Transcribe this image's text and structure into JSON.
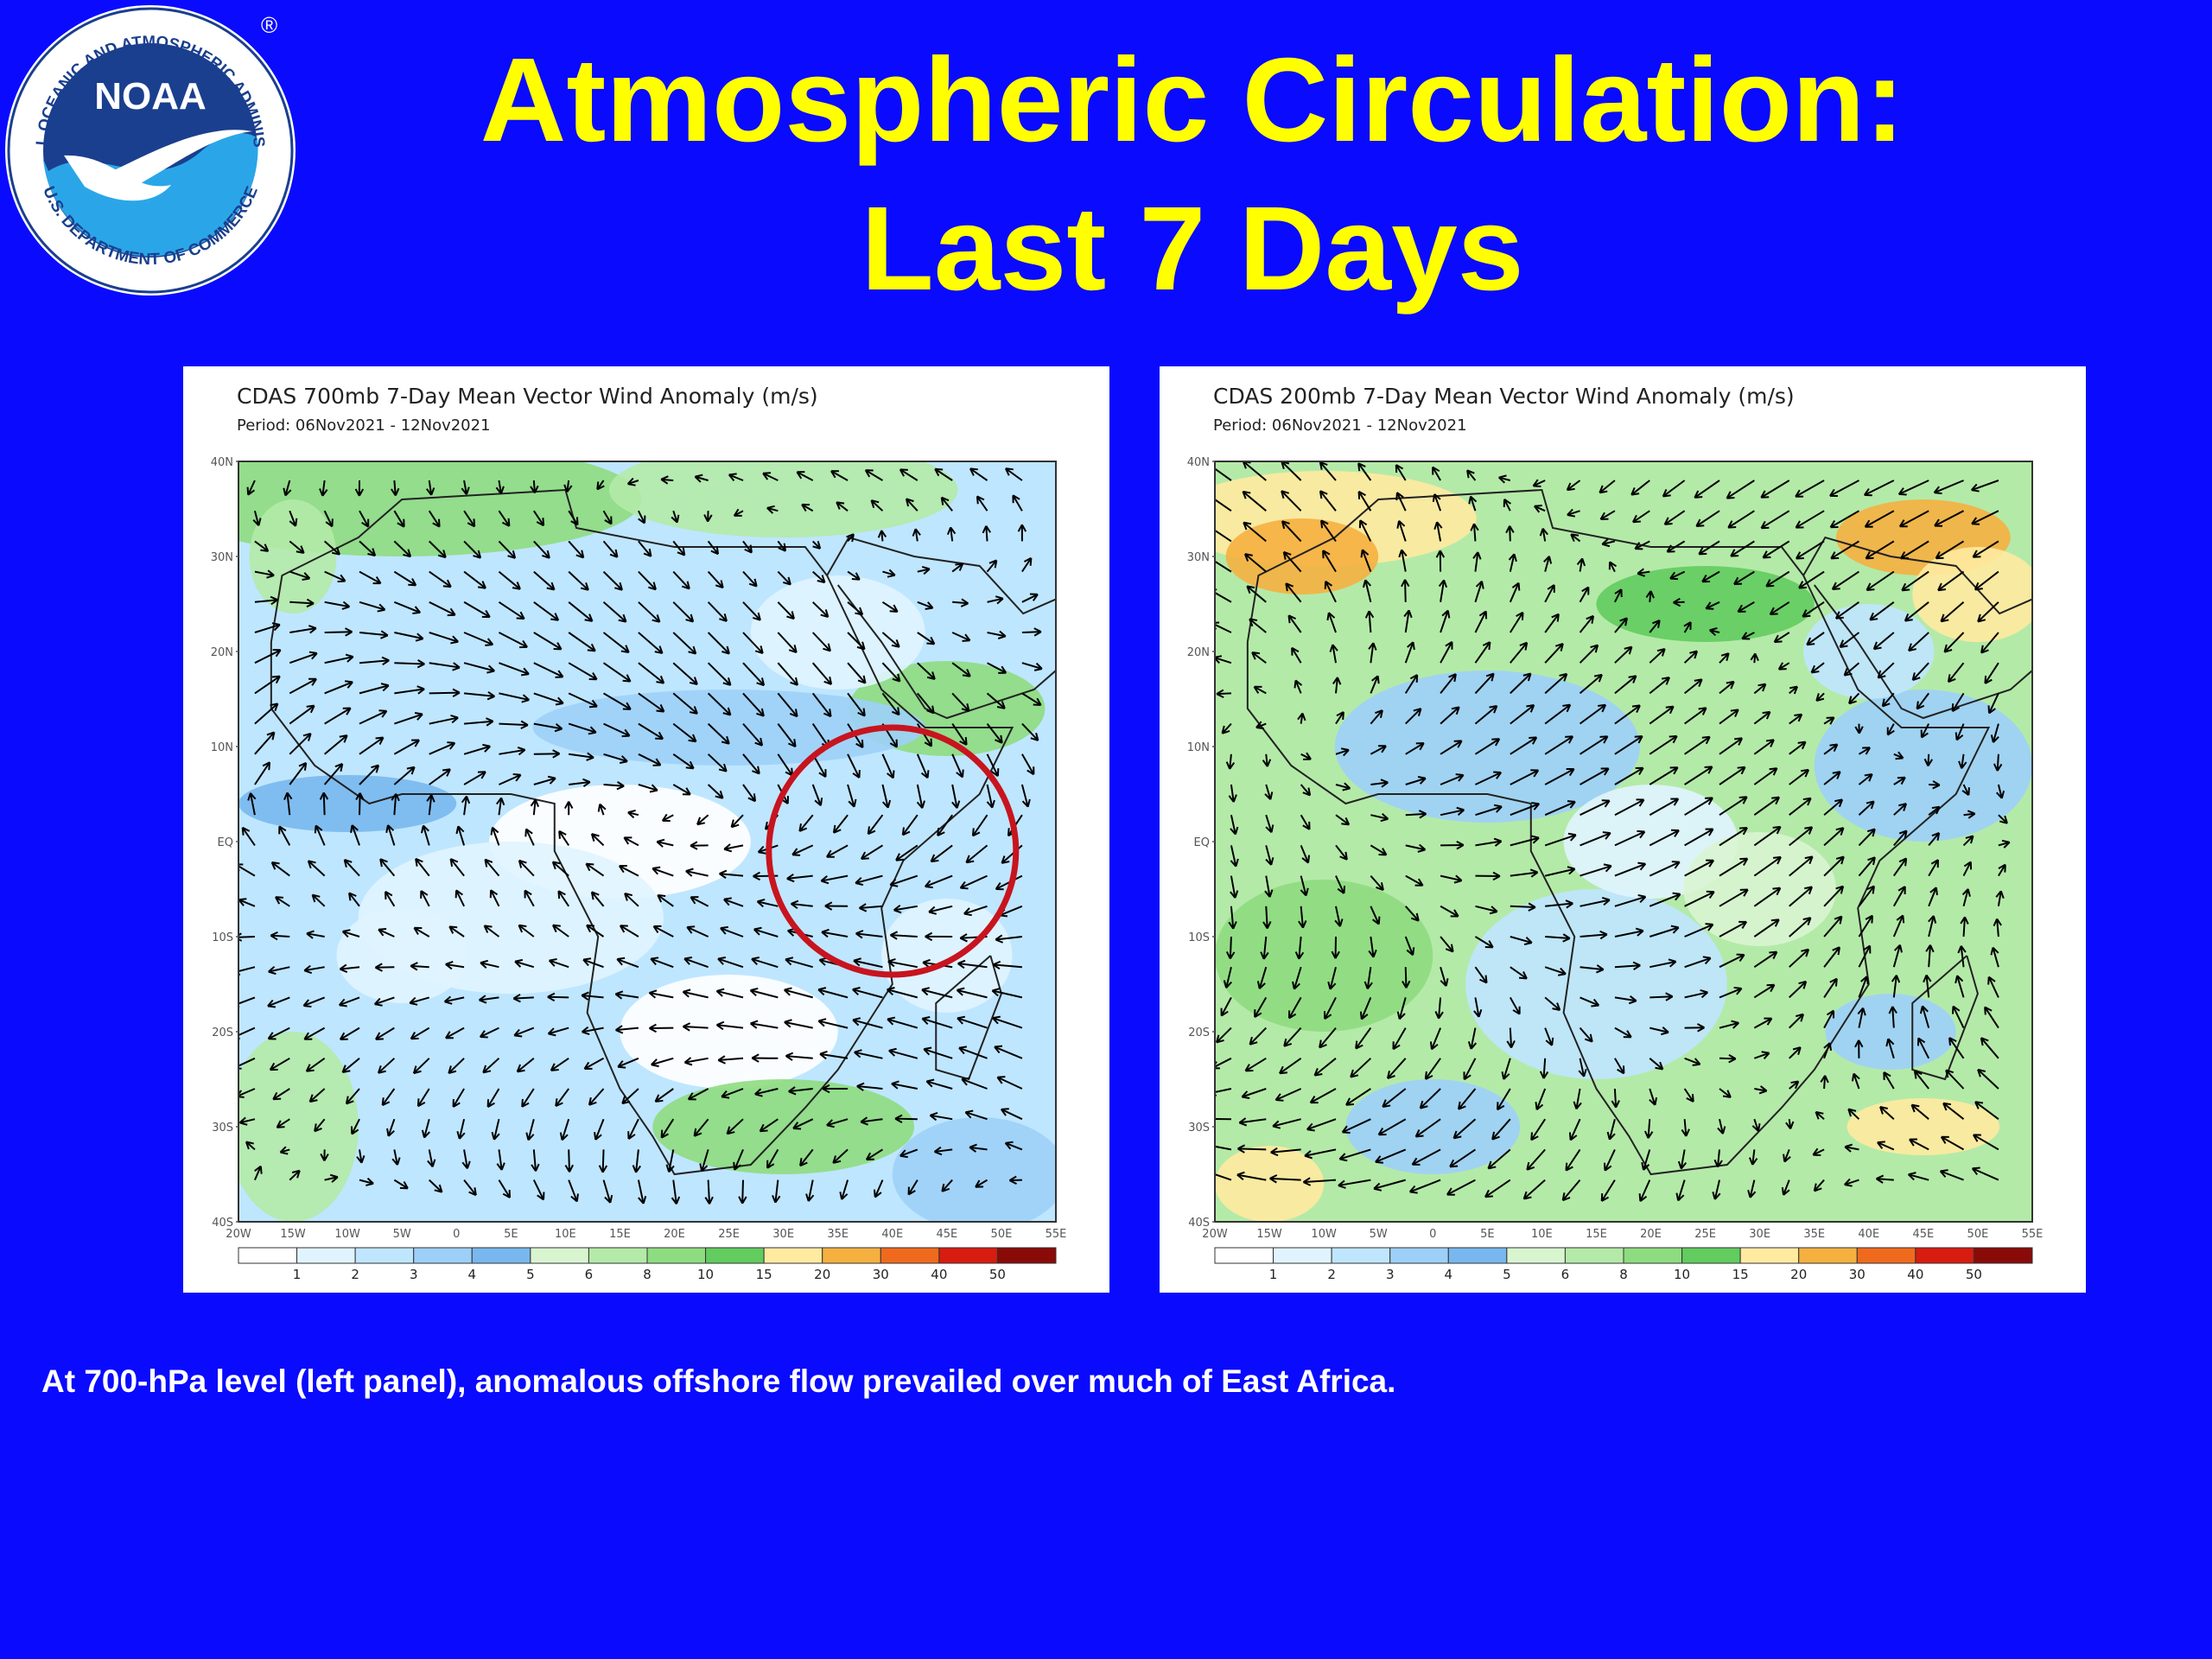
{
  "slide": {
    "title_line1": "Atmospheric Circulation:",
    "title_line2": "Last 7 Days",
    "caption": "At 700-hPa level (left panel), anomalous offshore flow prevailed over much of East Africa.",
    "background_color": "#0a0aff",
    "title_color": "#ffff00"
  },
  "logo": {
    "center_text": "NOAA",
    "ring_text_top": "NATIONAL OCEANIC AND ATMOSPHERIC ADMINISTRATION",
    "ring_text_bottom": "U.S. DEPARTMENT OF COMMERCE",
    "registered_mark": "®"
  },
  "panels": [
    {
      "id": "left",
      "title": "CDAS 700mb 7-Day Mean Vector Wind Anomaly (m/s)",
      "period": "Period: 06Nov2021 - 12Nov2021",
      "highlight_circle": true
    },
    {
      "id": "right",
      "title": "CDAS 200mb 7-Day Mean Vector Wind Anomaly (m/s)",
      "period": "Period: 06Nov2021 - 12Nov2021",
      "highlight_circle": false
    }
  ],
  "map_axes": {
    "lat_labels": [
      "40N",
      "30N",
      "20N",
      "10N",
      "EQ",
      "10S",
      "20S",
      "30S",
      "40S"
    ],
    "lon_labels": [
      "20W",
      "15W",
      "10W",
      "5W",
      "0",
      "5E",
      "10E",
      "15E",
      "20E",
      "25E",
      "30E",
      "35E",
      "40E",
      "45E",
      "50E",
      "55E"
    ]
  },
  "colorbar": {
    "labels": [
      "1",
      "2",
      "3",
      "4",
      "5",
      "6",
      "8",
      "10",
      "15",
      "20",
      "30",
      "40",
      "50"
    ],
    "colors": [
      "#ffffff",
      "#e0f4ff",
      "#bfe6ff",
      "#9dd0f8",
      "#78b8ef",
      "#d8f5d0",
      "#b4eaa8",
      "#8edc80",
      "#62cc5e",
      "#ffeaa0",
      "#f5b040",
      "#f06a1e",
      "#d81c10",
      "#8a0a08"
    ]
  }
}
